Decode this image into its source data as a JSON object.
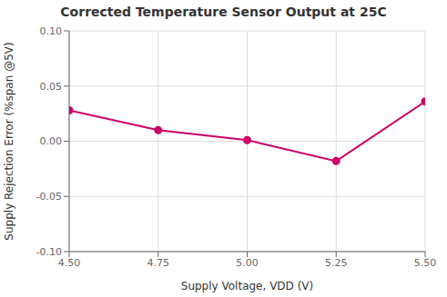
{
  "chart_data": {
    "type": "line",
    "title": "Corrected Temperature Sensor Output at 25C",
    "xlabel": "Supply Voltage, VDD (V)",
    "ylabel": "Supply Rejection Error (%span @5V)",
    "x": [
      4.5,
      4.75,
      5.0,
      5.25,
      5.5
    ],
    "values": [
      0.028,
      0.01,
      0.001,
      -0.018,
      0.036
    ],
    "color": "#CC0066",
    "marker": "circle",
    "xlim": [
      4.5,
      5.5
    ],
    "ylim": [
      -0.1,
      0.1
    ],
    "xticks": [
      {
        "value": 4.5,
        "label": "4.50"
      },
      {
        "value": 4.75,
        "label": "4.75"
      },
      {
        "value": 5.0,
        "label": "5.00"
      },
      {
        "value": 5.25,
        "label": "5.25"
      },
      {
        "value": 5.5,
        "label": "5.50"
      }
    ],
    "yticks": [
      {
        "value": -0.1,
        "label": "-0.10"
      },
      {
        "value": -0.05,
        "label": "-0.05"
      },
      {
        "value": 0.0,
        "label": "0.00"
      },
      {
        "value": 0.05,
        "label": "0.05"
      },
      {
        "value": 0.1,
        "label": "0.10"
      }
    ],
    "grid": true
  }
}
